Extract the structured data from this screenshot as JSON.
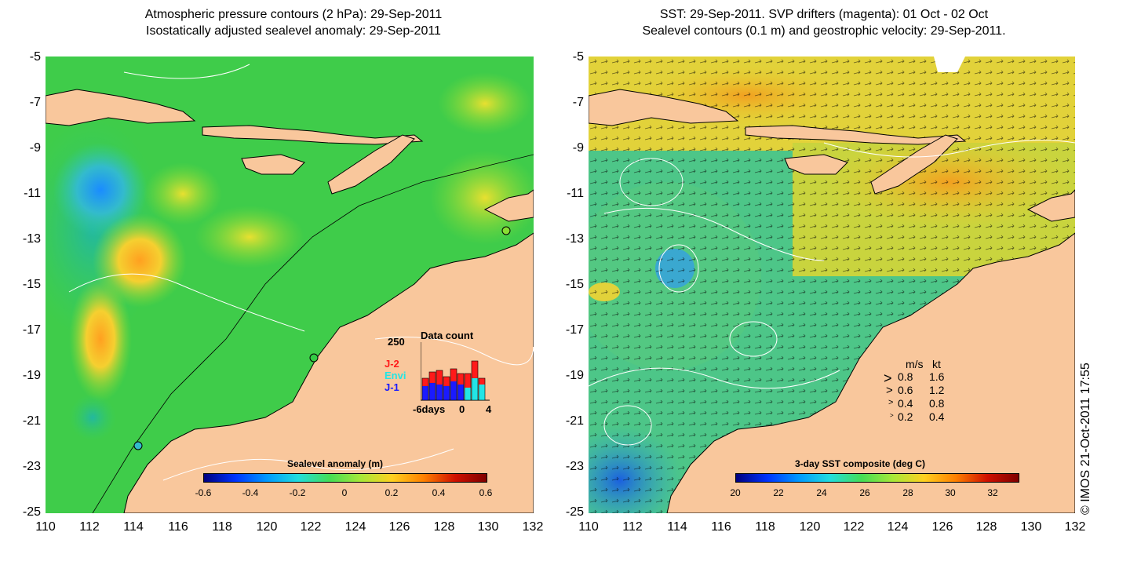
{
  "left_panel": {
    "title_line1": "Atmospheric pressure contours (2 hPa): 29-Sep-2011",
    "title_line2": "Isostatically adjusted sealevel anomaly: 29-Sep-2011",
    "colorbar_label": "Sealevel anomaly (m)",
    "colorbar_ticks": [
      "-0.6",
      "-0.4",
      "-0.2",
      "0",
      "0.2",
      "0.4",
      "0.6"
    ],
    "inset": {
      "title": "Data count",
      "ymax_label": "250",
      "xlabels": [
        "-6days",
        "0",
        "4"
      ],
      "legend": [
        {
          "label": "J-2",
          "color": "#ff1a1a"
        },
        {
          "label": "Envi",
          "color": "#22e5e5"
        },
        {
          "label": "J-1",
          "color": "#1a1aff"
        }
      ]
    }
  },
  "right_panel": {
    "title_line1": "SST: 29-Sep-2011. SVP drifters (magenta): 01 Oct - 02 Oct",
    "title_line2": "Sealevel contours (0.1 m) and geostrophic velocity: 29-Sep-2011.",
    "colorbar_label": "3-day SST composite (deg C)",
    "colorbar_ticks": [
      "20",
      "22",
      "24",
      "26",
      "28",
      "30",
      "32"
    ],
    "speed_legend": {
      "header_ms": "m/s",
      "header_kt": "kt",
      "rows": [
        {
          "ms": "0.8",
          "kt": "1.6"
        },
        {
          "ms": "0.6",
          "kt": "1.2"
        },
        {
          "ms": "0.4",
          "kt": "0.8"
        },
        {
          "ms": "0.2",
          "kt": "0.4"
        }
      ]
    }
  },
  "axes": {
    "y_ticks": [
      "-5",
      "-7",
      "-9",
      "-11",
      "-13",
      "-15",
      "-17",
      "-19",
      "-21",
      "-23",
      "-25"
    ],
    "x_ticks": [
      "110",
      "112",
      "114",
      "116",
      "118",
      "120",
      "122",
      "124",
      "126",
      "128",
      "130",
      "132"
    ]
  },
  "copyright": "© IMOS 21-Oct-2011 17:55",
  "colors": {
    "land": "#f9c79c",
    "ocean_green": "#33cc44",
    "sst_green": "#44c77a"
  }
}
